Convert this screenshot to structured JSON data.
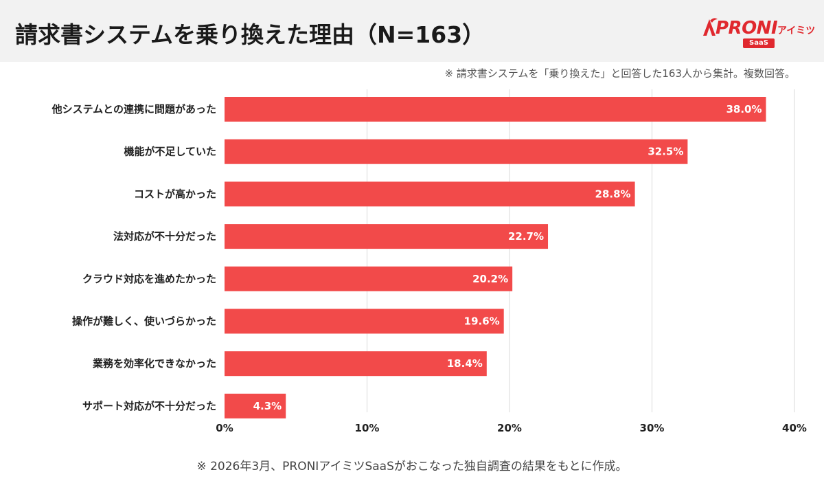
{
  "title": "請求書システムを乗り換えた理由（N=163）",
  "note": "※ 請求書システムを「乗り換えた」と回答した163人から集計。複数回答。",
  "footer": "※ 2026年3月、PRONIアイミツSaaSがおこなった独自調査の結果をもとに作成。",
  "logo": {
    "text": "PRONI",
    "kana": "アイミツ",
    "sub": "SaaS",
    "color": "#e0282e"
  },
  "chart_data": {
    "type": "bar",
    "orientation": "horizontal",
    "title": "",
    "xlabel": "",
    "ylabel": "",
    "xlim": [
      0,
      40
    ],
    "xticks": [
      0,
      10,
      20,
      30,
      40
    ],
    "tick_suffix": "%",
    "grid": true,
    "bar_color": "#f24a4a",
    "categories": [
      "他システムとの連携に問題があった",
      "機能が不足していた",
      "コストが高かった",
      "法対応が不十分だった",
      "クラウド対応を進めたかった",
      "操作が難しく、使いづらかった",
      "業務を効率化できなかった",
      "サポート対応が不十分だった"
    ],
    "values": [
      38.0,
      32.5,
      28.8,
      22.7,
      20.2,
      19.6,
      18.4,
      4.3
    ],
    "value_labels": [
      "38.0%",
      "32.5%",
      "28.8%",
      "22.7%",
      "20.2%",
      "19.6%",
      "18.4%",
      "4.3%"
    ]
  }
}
